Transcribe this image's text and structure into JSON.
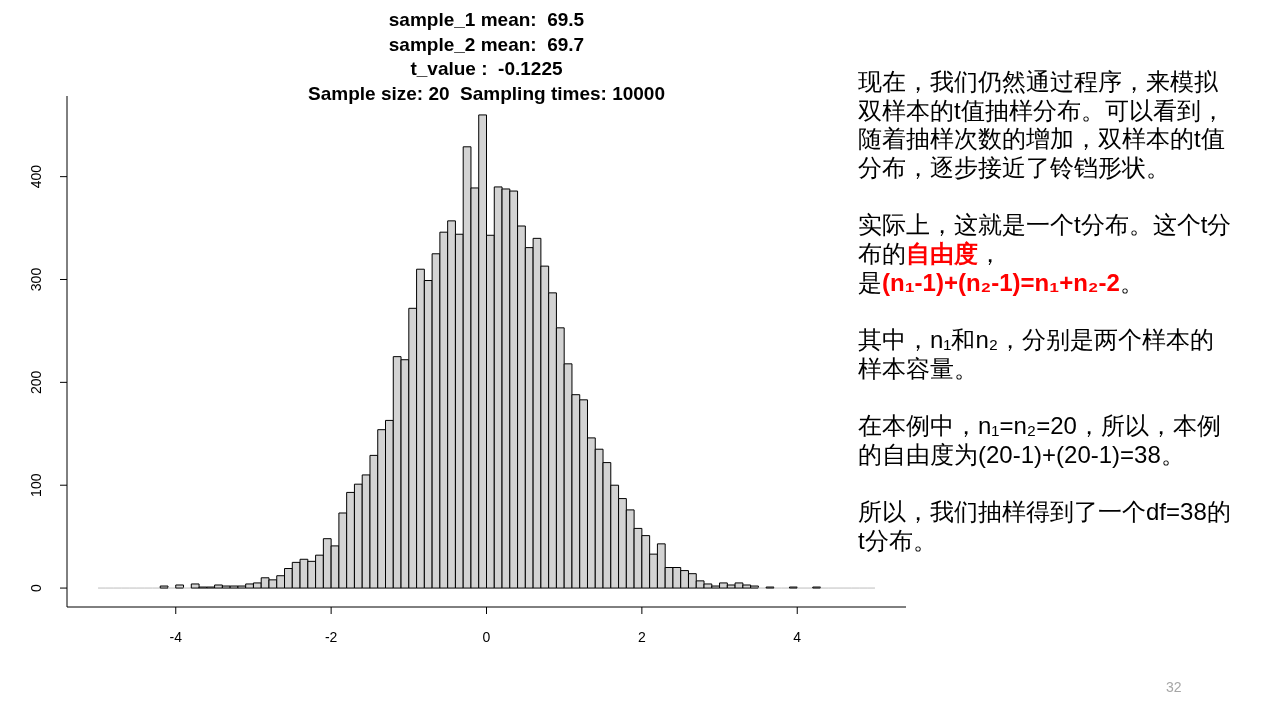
{
  "chart_data": [
    {
      "type": "histogram",
      "title": "sample_1 mean:  69.5\nsample_2 mean:  69.7\nt_value :  -0.1225\nSample size: 20  Sampling times: 10000",
      "bins": [
        -5,
        -4.9,
        -4.8,
        -4.7,
        -4.6,
        -4.5,
        -4.4,
        -4.3,
        -4.2,
        -4.1,
        -4,
        -3.9,
        -3.8,
        -3.7,
        -3.6,
        -3.5,
        -3.4,
        -3.3,
        -3.2,
        -3.1,
        -3,
        -2.9,
        -2.8,
        -2.7,
        -2.6,
        -2.5,
        -2.4,
        -2.3,
        -2.2,
        -2.1,
        -2,
        -1.9,
        -1.8,
        -1.7,
        -1.6,
        -1.5,
        -1.4,
        -1.3,
        -1.2,
        -1.1,
        -1,
        -0.9,
        -0.8,
        -0.7,
        -0.6,
        -0.5,
        -0.4,
        -0.3,
        -0.2,
        -0.1,
        0,
        0.1,
        0.2,
        0.3,
        0.4,
        0.5,
        0.6,
        0.7,
        0.8,
        0.9,
        1,
        1.1,
        1.2,
        1.3,
        1.4,
        1.5,
        1.6,
        1.7,
        1.8,
        1.9,
        2,
        2.1,
        2.2,
        2.3,
        2.4,
        2.5,
        2.6,
        2.7,
        2.8,
        2.9,
        3,
        3.1,
        3.2,
        3.3,
        3.4,
        3.5,
        3.6,
        3.7,
        3.8,
        3.9,
        4,
        4.1,
        4.2,
        4.3,
        4.4,
        4.5,
        4.6,
        4.7,
        4.8,
        4.9,
        5
      ],
      "values": [
        0,
        0,
        0,
        0,
        0,
        0,
        0,
        0,
        2,
        0,
        3,
        0,
        4,
        1,
        1,
        3,
        2,
        2,
        2,
        4,
        5,
        10,
        8,
        12,
        19,
        25,
        28,
        26,
        32,
        48,
        41,
        73,
        93,
        101,
        110,
        129,
        154,
        163,
        225,
        222,
        272,
        310,
        299,
        325,
        346,
        357,
        344,
        429,
        389,
        460,
        343,
        390,
        388,
        386,
        352,
        331,
        340,
        313,
        287,
        253,
        218,
        188,
        183,
        146,
        135,
        122,
        100,
        87,
        76,
        58,
        51,
        33,
        43,
        20,
        20,
        17,
        14,
        7,
        4,
        2,
        5,
        3,
        5,
        3,
        2,
        0,
        1,
        0,
        0,
        1,
        0,
        0,
        1,
        0,
        0,
        0,
        0,
        0,
        0,
        0
      ],
      "color": "#d3d3d3",
      "xlim": [
        -5.4,
        5.4
      ],
      "ylim": [
        -18.4,
        478.4
      ],
      "xticks": [
        -4,
        -2,
        0,
        2,
        4
      ],
      "yticks": [
        0,
        100,
        200,
        300,
        400
      ]
    },
    {
      "type": "other",
      "annotations": [
        "现在，我们仍然通过程序，来模拟\n",
        "双样本的t值抽样分布。可以看到，\n",
        "随着抽样次数的增加，双样本的t值\n",
        "分布，逐步接近了铃铛形状。\n\n",
        "实际上，这就是一个t分布。这个t分\n",
        "布的",
        "自由度",
        "，\n",
        "是",
        "(n₁-1)+(n₂-1)=n₁+n₂-2",
        "。\n\n",
        "其中，n₁和n₂，分别是两个样本的\n",
        "样本容量。\n\n",
        "在本例中，n₁=n₂=20，所以，本例\n",
        "的自由度为(20-1)+(20-1)=38。\n\n",
        "所以，我们抽样得到了一个df=38的\n",
        "t分布。"
      ],
      "colors": [
        "#000000",
        "#000000",
        "#000000",
        "#000000",
        "#000000",
        "#000000",
        "#ff0000",
        "#000000",
        "#000000",
        "#ff0000",
        "#000000",
        "#000000",
        "#000000",
        "#000000",
        "#000000",
        "#000000",
        "#000000"
      ]
    },
    {
      "type": "other",
      "annotations": [
        "32"
      ],
      "colors": [
        "#a6a6a6"
      ]
    }
  ]
}
